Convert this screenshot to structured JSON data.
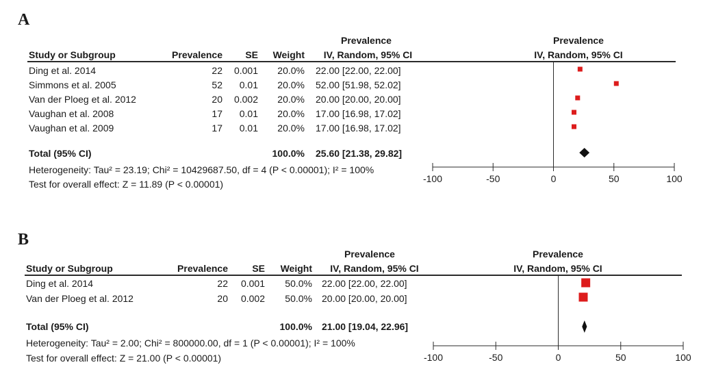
{
  "panels": [
    {
      "letter": "A",
      "header": {
        "study": "Study or Subgroup",
        "prevalence": "Prevalence",
        "se": "SE",
        "weight": "Weight",
        "effect_top": "Prevalence",
        "effect_bottom": "IV, Random, 95% CI",
        "plot_top": "Prevalence",
        "plot_bottom": "IV, Random, 95% CI"
      },
      "rows": [
        {
          "study": "Ding et al. 2014",
          "prevalence": "22",
          "se": "0.001",
          "weight": "20.0%",
          "ci": "22.00 [22.00, 22.00]"
        },
        {
          "study": "Simmons et al. 2005",
          "prevalence": "52",
          "se": "0.01",
          "weight": "20.0%",
          "ci": "52.00 [51.98, 52.02]"
        },
        {
          "study": "Van der Ploeg et al. 2012",
          "prevalence": "20",
          "se": "0.002",
          "weight": "20.0%",
          "ci": "20.00 [20.00, 20.00]"
        },
        {
          "study": "Vaughan et al. 2008",
          "prevalence": "17",
          "se": "0.01",
          "weight": "20.0%",
          "ci": "17.00 [16.98, 17.02]"
        },
        {
          "study": "Vaughan et al. 2009",
          "prevalence": "17",
          "se": "0.01",
          "weight": "20.0%",
          "ci": "17.00 [16.98, 17.02]"
        }
      ],
      "total": {
        "label": "Total (95% CI)",
        "weight": "100.0%",
        "ci": "25.60 [21.38, 29.82]"
      },
      "heterogeneity": "Heterogeneity: Tau² = 23.19; Chi² = 10429687.50, df = 4 (P < 0.00001); I² = 100%",
      "overall": "Test for overall effect: Z = 11.89 (P < 0.00001)",
      "ticks": [
        "-100",
        "-50",
        "0",
        "50",
        "100"
      ]
    },
    {
      "letter": "B",
      "header": {
        "study": "Study or Subgroup",
        "prevalence": "Prevalence",
        "se": "SE",
        "weight": "Weight",
        "effect_top": "Prevalence",
        "effect_bottom": "IV, Random, 95% CI",
        "plot_top": "Prevalence",
        "plot_bottom": "IV, Random, 95% CI"
      },
      "rows": [
        {
          "study": "Ding et al. 2014",
          "prevalence": "22",
          "se": "0.001",
          "weight": "50.0%",
          "ci": "22.00 [22.00, 22.00]"
        },
        {
          "study": "Van der Ploeg et al. 2012",
          "prevalence": "20",
          "se": "0.002",
          "weight": "50.0%",
          "ci": "20.00 [20.00, 20.00]"
        }
      ],
      "total": {
        "label": "Total (95% CI)",
        "weight": "100.0%",
        "ci": "21.00 [19.04, 22.96]"
      },
      "heterogeneity": "Heterogeneity: Tau² = 2.00; Chi² = 800000.00, df = 1 (P < 0.00001); I² = 100%",
      "overall": "Test for overall effect: Z = 21.00 (P < 0.00001)",
      "ticks": [
        "-100",
        "-50",
        "0",
        "50",
        "100"
      ]
    }
  ],
  "colors": {
    "study_marker": "#dd1c1c",
    "summary_diamond": "#111111",
    "rule": "#2a2a2a"
  },
  "chart_data": [
    {
      "type": "forest",
      "xlim": [
        -100,
        100
      ],
      "xticks": [
        -100,
        -50,
        0,
        50,
        100
      ],
      "studies": [
        {
          "name": "Ding et al. 2014",
          "estimate": 22.0,
          "lower": 22.0,
          "upper": 22.0,
          "weight": 20.0
        },
        {
          "name": "Simmons et al. 2005",
          "estimate": 52.0,
          "lower": 51.98,
          "upper": 52.02,
          "weight": 20.0
        },
        {
          "name": "Van der Ploeg et al. 2012",
          "estimate": 20.0,
          "lower": 20.0,
          "upper": 20.0,
          "weight": 20.0
        },
        {
          "name": "Vaughan et al. 2008",
          "estimate": 17.0,
          "lower": 16.98,
          "upper": 17.02,
          "weight": 20.0
        },
        {
          "name": "Vaughan et al. 2009",
          "estimate": 17.0,
          "lower": 16.98,
          "upper": 17.02,
          "weight": 20.0
        }
      ],
      "summary": {
        "estimate": 25.6,
        "lower": 21.38,
        "upper": 29.82
      }
    },
    {
      "type": "forest",
      "xlim": [
        -100,
        100
      ],
      "xticks": [
        -100,
        -50,
        0,
        50,
        100
      ],
      "studies": [
        {
          "name": "Ding et al. 2014",
          "estimate": 22.0,
          "lower": 22.0,
          "upper": 22.0,
          "weight": 50.0
        },
        {
          "name": "Van der Ploeg et al. 2012",
          "estimate": 20.0,
          "lower": 20.0,
          "upper": 20.0,
          "weight": 50.0
        }
      ],
      "summary": {
        "estimate": 21.0,
        "lower": 19.04,
        "upper": 22.96
      }
    }
  ]
}
